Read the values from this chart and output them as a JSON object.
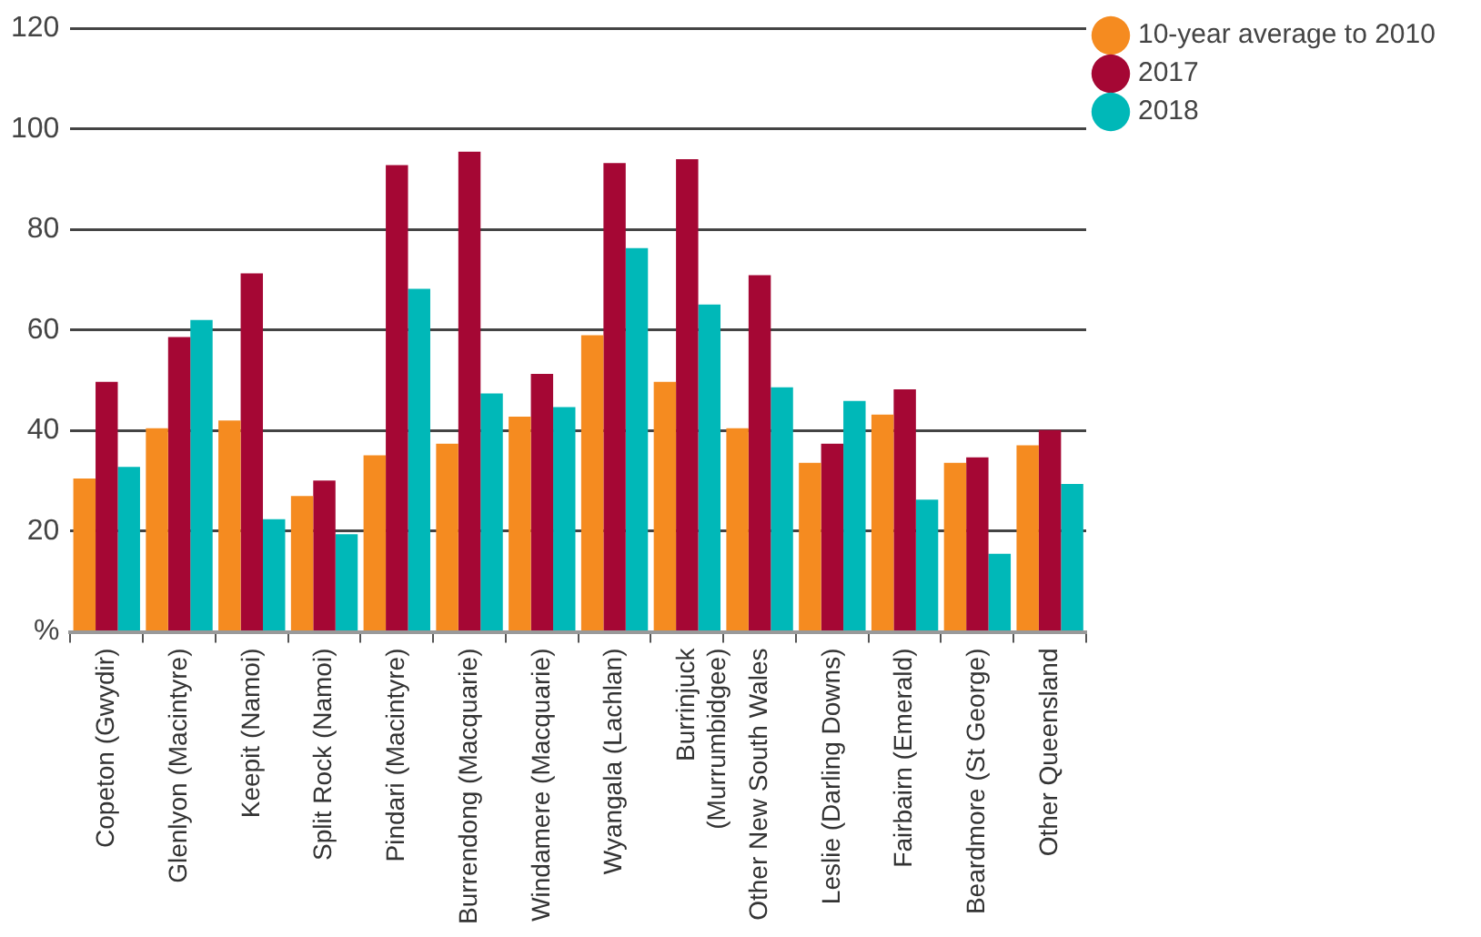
{
  "chart_data": {
    "type": "bar",
    "categories": [
      "Copeton (Gwydir)",
      "Glenlyon (Macintyre)",
      "Keepit (Namoi)",
      "Split Rock (Namoi)",
      "Pindari (Macintyre)",
      "Burrendong (Macquarie)",
      "Windamere (Macquarie)",
      "Wyangala (Lachlan)",
      "Burrinjuck (Murrumbidgee)",
      "Other New South Wales",
      "Leslie (Darling Downs)",
      "Fairbairn (Emerald)",
      "Beardmore (St George)",
      "Other Queensland"
    ],
    "series": [
      {
        "name": "10-year average to 2010",
        "color": "#f58b20",
        "values": [
          30.5,
          40.5,
          42,
          27,
          35.1,
          37.4,
          42.8,
          59,
          49.7,
          40.5,
          33.6,
          43.2,
          33.6,
          37.1
        ]
      },
      {
        "name": "2017",
        "color": "#a50734",
        "values": [
          49.7,
          58.6,
          71.3,
          30.1,
          92.8,
          95.5,
          51.3,
          93.2,
          94,
          70.9,
          37.4,
          48.2,
          34.7,
          40.1
        ]
      },
      {
        "name": "2018",
        "color": "#00b8b8",
        "values": [
          32.8,
          62,
          22.4,
          19.4,
          68.2,
          47.4,
          44.7,
          76.3,
          65.1,
          48.6,
          45.9,
          26.3,
          15.5,
          29.4
        ]
      }
    ],
    "ylim": [
      0,
      120
    ],
    "yticks": [
      {
        "value": 0,
        "label": "%"
      },
      20,
      40,
      60,
      80,
      100,
      120
    ],
    "grid": "y",
    "legend": "top right"
  }
}
